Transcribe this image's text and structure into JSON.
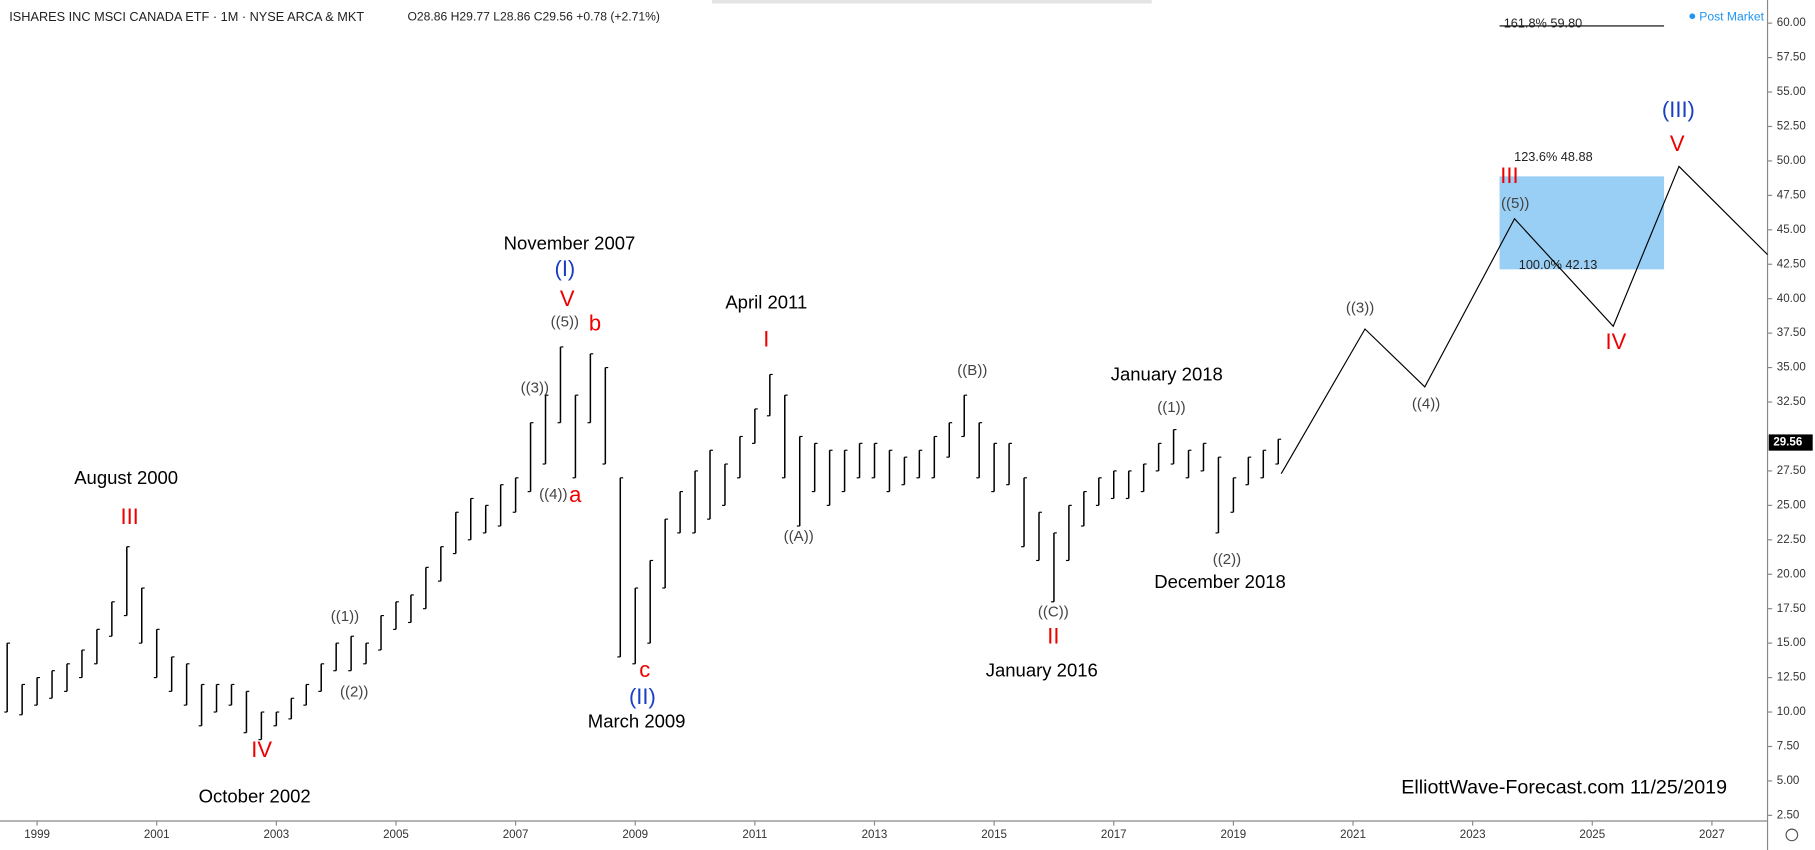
{
  "chart_data": {
    "type": "ohlc",
    "title": "ISHARES INC MSCI CANADA ETF · 1M · NYSE ARCA & MKT",
    "quote": "O28.86 H29.77 L28.86 C29.56 +0.78 (+2.71%)",
    "status": "Post Market",
    "watermark": "ElliottWave-Forecast.com 11/25/2019",
    "xlim": [
      1998.38,
      2027.93
    ],
    "xticks": [
      1999,
      2001,
      2003,
      2005,
      2007,
      2009,
      2011,
      2013,
      2015,
      2017,
      2019,
      2021,
      2023,
      2025,
      2027
    ],
    "ylim": [
      2.09,
      61.68
    ],
    "yticks": [
      {
        "value": 2.5,
        "label": "2.50"
      },
      {
        "value": 5,
        "label": "5.00"
      },
      {
        "value": 7.5,
        "label": "7.50"
      },
      {
        "value": 10,
        "label": "10.00"
      },
      {
        "value": 12.5,
        "label": "12.50"
      },
      {
        "value": 15,
        "label": "15.00"
      },
      {
        "value": 17.5,
        "label": "17.50"
      },
      {
        "value": 20,
        "label": "20.00"
      },
      {
        "value": 22.5,
        "label": "22.50"
      },
      {
        "value": 25,
        "label": "25.00"
      },
      {
        "value": 27.5,
        "label": "27.50"
      },
      {
        "value": 32.5,
        "label": "32.50"
      },
      {
        "value": 35,
        "label": "35.00"
      },
      {
        "value": 37.5,
        "label": "37.50"
      },
      {
        "value": 40,
        "label": "40.00"
      },
      {
        "value": 42.5,
        "label": "42.50"
      },
      {
        "value": 45,
        "label": "45.00"
      },
      {
        "value": 47.5,
        "label": "47.50"
      },
      {
        "value": 50,
        "label": "50.00"
      },
      {
        "value": 52.5,
        "label": "52.50"
      },
      {
        "value": 55,
        "label": "55.00"
      },
      {
        "value": 57.5,
        "label": "57.50"
      },
      {
        "value": 60,
        "label": "60.00"
      }
    ],
    "last_price": 29.56,
    "color": "#000000",
    "x": [
      1998.5,
      1998.75,
      1999,
      1999.25,
      1999.5,
      1999.75,
      2000,
      2000.25,
      2000.5,
      2000.75,
      2001,
      2001.25,
      2001.5,
      2001.75,
      2002,
      2002.25,
      2002.5,
      2002.75,
      2003,
      2003.25,
      2003.5,
      2003.75,
      2004,
      2004.25,
      2004.5,
      2004.75,
      2005,
      2005.25,
      2005.5,
      2005.75,
      2006,
      2006.25,
      2006.5,
      2006.75,
      2007,
      2007.25,
      2007.5,
      2007.75,
      2008,
      2008.25,
      2008.5,
      2008.75,
      2009,
      2009.25,
      2009.5,
      2009.75,
      2010,
      2010.25,
      2010.5,
      2010.75,
      2011,
      2011.25,
      2011.5,
      2011.75,
      2012,
      2012.25,
      2012.5,
      2012.75,
      2013,
      2013.25,
      2013.5,
      2013.75,
      2014,
      2014.25,
      2014.5,
      2014.75,
      2015,
      2015.25,
      2015.5,
      2015.75,
      2016,
      2016.25,
      2016.5,
      2016.75,
      2017,
      2017.25,
      2017.5,
      2017.75,
      2018,
      2018.25,
      2018.5,
      2018.75,
      2019,
      2019.25,
      2019.5,
      2019.75
    ],
    "high": [
      15,
      12,
      12.5,
      13,
      13.5,
      14.5,
      16,
      18,
      22,
      19,
      16,
      14,
      13.5,
      12,
      12,
      12,
      11.5,
      10,
      10,
      11,
      12,
      13.5,
      15,
      15.5,
      15,
      17,
      18,
      18.5,
      20.5,
      22,
      24.5,
      25.5,
      25,
      26.5,
      27,
      31,
      33,
      36.5,
      33,
      36,
      35,
      27,
      19,
      21,
      24,
      26,
      27.5,
      29,
      28,
      30,
      32,
      34.5,
      33,
      30,
      29.5,
      29,
      29,
      29.5,
      29.5,
      29,
      28.5,
      29,
      30,
      31,
      33,
      31,
      29.5,
      29.5,
      27,
      24.5,
      23,
      25,
      26,
      27,
      27.5,
      27.5,
      28,
      29.5,
      30.5,
      29,
      29.5,
      28.5,
      27,
      28.5,
      29,
      29.8
    ],
    "low": [
      10,
      9.8,
      10.5,
      11,
      11.5,
      12.5,
      13.5,
      15.5,
      17,
      15,
      12.5,
      11.5,
      10.5,
      9,
      10,
      10.5,
      8.5,
      8,
      9,
      9.5,
      10.5,
      11.5,
      13,
      13,
      13.5,
      14.5,
      16,
      16.5,
      17.5,
      19.5,
      21.5,
      22.5,
      23,
      23.5,
      24.5,
      26,
      28,
      31,
      27,
      31,
      28,
      14,
      13.5,
      15,
      19,
      23,
      23,
      24,
      25,
      27,
      29.5,
      31.5,
      27,
      23.5,
      26,
      25,
      26,
      27,
      27,
      26,
      26.5,
      27,
      27,
      28.5,
      30,
      27,
      26,
      26.5,
      22,
      21,
      18,
      21,
      23.5,
      25,
      25.5,
      25.5,
      26,
      27.5,
      28,
      27,
      27.5,
      23,
      24.5,
      26.5,
      27,
      28
    ],
    "projection": {
      "color": "#000000",
      "x": [
        2019.8,
        2021.2,
        2022.2,
        2023.7,
        2025.35,
        2026.45,
        2027.93
      ],
      "values": [
        27.3,
        37.8,
        33.6,
        45.8,
        38,
        49.6,
        43.2
      ]
    },
    "fib_box": {
      "color": "#99cff5",
      "x": [
        2023.45,
        2026.2
      ]
    },
    "fib_levels": [
      {
        "label": "161.8% 59.80",
        "value": 59.8
      },
      {
        "label": "123.6% 48.88",
        "value": 48.88
      },
      {
        "label": "100.0% 42.13",
        "value": 42.13
      }
    ],
    "annotations": [
      "August 2000",
      "November 2007",
      "April 2011",
      "March 2009",
      "October 2002",
      "January 2016",
      "January 2018",
      "December  2018",
      "III",
      "IV",
      "V",
      "b",
      "a",
      "c",
      "I",
      "II",
      "III",
      "IV",
      "V",
      "(I)",
      "(II)",
      "(III)",
      "((1))",
      "((2))",
      "((3))",
      "((4))",
      "((5))",
      "((A))",
      "((B))",
      "((C))",
      "((1))",
      "((2))",
      "((3))",
      "((4))",
      "((5))"
    ]
  }
}
